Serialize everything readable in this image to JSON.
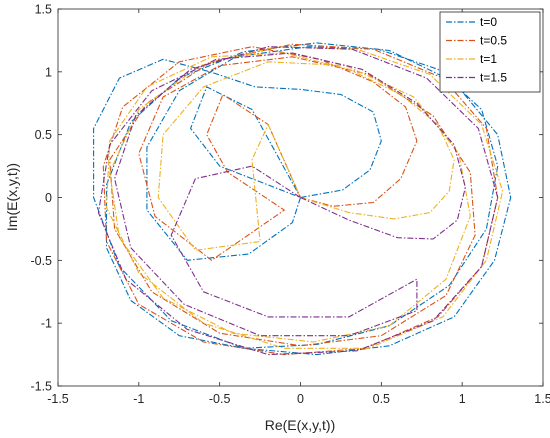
{
  "chart_data": {
    "type": "line",
    "title": "",
    "xlabel": "Re(E(x,y,t))",
    "ylabel": "Im(E(x,y,t))",
    "xlim": [
      -1.5,
      1.5
    ],
    "ylim": [
      -1.5,
      1.5
    ],
    "xticks": [
      "-1.5",
      "-1",
      "-0.5",
      "0",
      "0.5",
      "1",
      "1.5"
    ],
    "yticks": [
      "-1.5",
      "-1",
      "-0.5",
      "0",
      "0.5",
      "1",
      "1.5"
    ],
    "grid": false,
    "line_style": "dash-dot",
    "legend_position": "top-right",
    "series": [
      {
        "name": "t=0",
        "color": "#0072BD",
        "x": [
          0,
          0.26,
          0.43,
          0.5,
          0.45,
          0.25,
          0,
          -0.28,
          -0.56,
          -0.85,
          -1.12,
          -1.28,
          -1.28,
          -1.12,
          -0.8,
          -0.35,
          0.1,
          0.55,
          0.95,
          1.2,
          1.3,
          1.22,
          0.95,
          0.55,
          0.1,
          -0.35,
          -0.75,
          -1.05,
          -1.2,
          -1.2,
          -1.05,
          -0.75,
          -0.35,
          0.1,
          0.55,
          0.92,
          1.15,
          1.22,
          1.12,
          0.85,
          0.48,
          0.05,
          -0.4,
          -0.75,
          -0.95,
          -0.95,
          -0.7,
          -0.32,
          -0.05,
          0,
          -0.5,
          -0.68,
          -0.58,
          -0.3,
          0
        ],
        "y": [
          0,
          0.06,
          0.22,
          0.45,
          0.68,
          0.82,
          0.86,
          0.88,
          1.0,
          1.1,
          0.95,
          0.55,
          0.0,
          -0.55,
          -0.98,
          -1.2,
          -1.25,
          -1.18,
          -0.95,
          -0.5,
          0.0,
          0.5,
          0.92,
          1.17,
          1.23,
          1.16,
          0.95,
          0.6,
          0.1,
          -0.4,
          -0.82,
          -1.1,
          -1.2,
          -1.17,
          -1.02,
          -0.7,
          -0.25,
          0.25,
          0.7,
          1.02,
          1.18,
          1.2,
          1.12,
          0.85,
          0.4,
          -0.1,
          -0.5,
          -0.45,
          -0.2,
          0.0,
          0.25,
          0.55,
          0.88,
          0.7,
          0.0
        ]
      },
      {
        "name": "t=0.5",
        "color": "#D95319",
        "x": [
          0,
          0.2,
          0.45,
          0.62,
          0.72,
          0.65,
          0.45,
          0.12,
          -0.3,
          -0.75,
          -1.1,
          -1.22,
          -1.2,
          -1.0,
          -0.6,
          -0.1,
          0.4,
          0.85,
          1.12,
          1.22,
          1.15,
          0.88,
          0.45,
          -0.05,
          -0.55,
          -0.95,
          -1.18,
          -1.15,
          -0.92,
          -0.5,
          0.0,
          0.5,
          0.9,
          1.08,
          1.05,
          0.82,
          0.42,
          -0.05,
          -0.5,
          -0.85,
          -1.0,
          -0.9,
          -0.55,
          -0.1,
          -0.45,
          -0.58,
          -0.48,
          -0.2,
          0
        ],
        "y": [
          0,
          -0.07,
          -0.04,
          0.15,
          0.45,
          0.72,
          0.92,
          1.1,
          1.2,
          1.08,
          0.72,
          0.25,
          -0.35,
          -0.85,
          -1.15,
          -1.25,
          -1.2,
          -0.95,
          -0.55,
          0.0,
          0.55,
          0.95,
          1.18,
          1.22,
          1.08,
          0.75,
          0.3,
          -0.25,
          -0.75,
          -1.08,
          -1.18,
          -1.1,
          -0.78,
          -0.3,
          0.2,
          0.65,
          0.98,
          1.12,
          1.05,
          0.8,
          0.35,
          -0.15,
          -0.5,
          -0.1,
          0.2,
          0.5,
          0.82,
          0.58,
          0.0
        ]
      },
      {
        "name": "t=1",
        "color": "#EDB120",
        "x": [
          0,
          0.3,
          0.58,
          0.8,
          0.92,
          0.95,
          0.85,
          0.62,
          0.3,
          -0.1,
          -0.55,
          -0.95,
          -1.18,
          -1.2,
          -1.0,
          -0.6,
          -0.1,
          0.42,
          0.88,
          1.15,
          1.25,
          1.12,
          0.8,
          0.35,
          -0.15,
          -0.62,
          -1.0,
          -1.18,
          -1.12,
          -0.85,
          -0.42,
          0.08,
          0.55,
          0.9,
          1.05,
          0.98,
          0.7,
          0.28,
          -0.2,
          -0.6,
          -0.85,
          -0.88,
          -0.65,
          -0.25,
          -0.3,
          -0.2,
          0
        ],
        "y": [
          0,
          -0.12,
          -0.17,
          -0.12,
          0.05,
          0.3,
          0.58,
          0.82,
          1.02,
          1.15,
          1.12,
          0.88,
          0.45,
          -0.08,
          -0.6,
          -1.0,
          -1.2,
          -1.2,
          -0.95,
          -0.5,
          0.05,
          0.58,
          0.98,
          1.18,
          1.2,
          1.05,
          0.7,
          0.2,
          -0.32,
          -0.8,
          -1.08,
          -1.15,
          -1.02,
          -0.65,
          -0.15,
          0.35,
          0.8,
          1.05,
          1.08,
          0.88,
          0.5,
          0.0,
          -0.42,
          -0.35,
          0.3,
          0.58,
          0.0
        ]
      },
      {
        "name": "t=1.5",
        "color": "#7E2F8E",
        "x": [
          0,
          0.3,
          0.6,
          0.82,
          0.97,
          1.02,
          0.95,
          0.72,
          0.38,
          -0.05,
          -0.52,
          -0.92,
          -1.18,
          -1.25,
          -1.08,
          -0.7,
          -0.2,
          0.35,
          0.82,
          1.12,
          1.22,
          1.1,
          0.78,
          0.32,
          -0.2,
          -0.68,
          -1.02,
          -1.15,
          -1.05,
          -0.72,
          -0.25,
          0.3,
          0.72,
          0.72,
          0.3,
          -0.2,
          -0.6,
          -0.8,
          -0.65,
          -0.3,
          0
        ],
        "y": [
          0,
          -0.18,
          -0.32,
          -0.33,
          -0.18,
          0.08,
          0.42,
          0.75,
          1.02,
          1.15,
          1.1,
          0.85,
          0.42,
          -0.12,
          -0.65,
          -1.05,
          -1.25,
          -1.22,
          -0.98,
          -0.55,
          0.0,
          0.55,
          0.95,
          1.18,
          1.2,
          1.02,
          0.65,
          0.15,
          -0.4,
          -0.85,
          -1.1,
          -1.1,
          -0.9,
          -0.65,
          -0.95,
          -0.95,
          -0.75,
          -0.3,
          0.15,
          0.25,
          0.0
        ]
      }
    ]
  }
}
